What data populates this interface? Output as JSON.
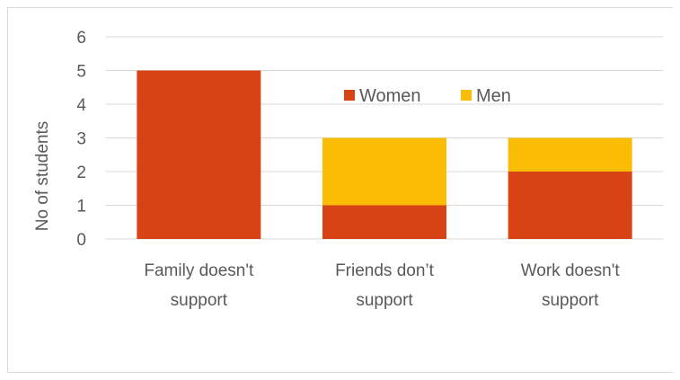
{
  "chart_data": {
    "type": "bar",
    "stacked": true,
    "categories": [
      [
        "Family doesn't",
        "support"
      ],
      [
        "Friends don’t",
        "support"
      ],
      [
        "Work doesn't",
        "support"
      ]
    ],
    "series": [
      {
        "name": "Women",
        "color": "#D84315",
        "values": [
          5,
          1,
          2
        ]
      },
      {
        "name": "Men",
        "color": "#FBBC05",
        "values": [
          0,
          2,
          1
        ]
      }
    ],
    "ylabel": "No of students",
    "xlabel": "",
    "title": "",
    "ylim": [
      0,
      6
    ],
    "yticks": [
      0,
      1,
      2,
      3,
      4,
      5,
      6
    ],
    "grid": true,
    "legend_position": "inside-top-center"
  }
}
